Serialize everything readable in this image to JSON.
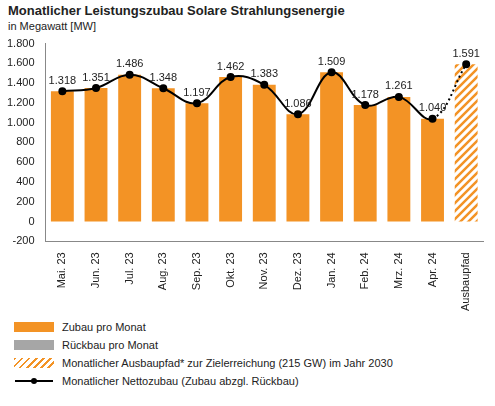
{
  "chart_data": {
    "type": "bar",
    "title": "Monatlicher Leistungszubau Solare Strahlungsenergie",
    "subtitle": "in Megawatt [MW]",
    "categories": [
      "Mai. 23",
      "Jun. 23",
      "Jul. 23",
      "Aug. 23",
      "Sep. 23",
      "Okt. 23",
      "Nov. 23",
      "Dez. 23",
      "Jan. 24",
      "Feb. 24",
      "Mrz. 24",
      "Apr. 24",
      "Ausbaupfad"
    ],
    "series": [
      {
        "name": "Zubau pro Monat",
        "type": "bar",
        "color": "#f39325",
        "values": [
          1318,
          1351,
          1486,
          1348,
          1197,
          1462,
          1383,
          1086,
          1509,
          1178,
          1261,
          1040,
          null
        ],
        "value_labels": [
          "1.318",
          "1.351",
          "1.486",
          "1.348",
          "1.197",
          "1.462",
          "1.383",
          "1.086",
          "1.509",
          "1.178",
          "1.261",
          "1.040",
          null
        ]
      },
      {
        "name": "Rückbau pro Monat",
        "type": "bar",
        "color": "#a6a6a6",
        "values": [
          null,
          null,
          null,
          null,
          null,
          null,
          null,
          null,
          null,
          null,
          null,
          null,
          null
        ]
      },
      {
        "name": "Monatlicher Ausbaupfad* zur Zielerreichung (215 GW) im Jahr 2030",
        "type": "bar",
        "color": "#f39325",
        "line_style": "hatched",
        "values": [
          null,
          null,
          null,
          null,
          null,
          null,
          null,
          null,
          null,
          null,
          null,
          null,
          1591
        ],
        "value_labels": [
          null,
          null,
          null,
          null,
          null,
          null,
          null,
          null,
          null,
          null,
          null,
          null,
          "1.591"
        ]
      },
      {
        "name": "Monatlicher Nettozubau (Zubau abzgl. Rückbau)",
        "type": "line",
        "color": "#000000",
        "marker": "circle",
        "line_style": "solid",
        "values": [
          1318,
          1351,
          1486,
          1348,
          1197,
          1462,
          1383,
          1086,
          1509,
          1178,
          1261,
          1040,
          1591
        ]
      }
    ],
    "ylim": [
      -200,
      1800
    ],
    "yticks": [
      -200,
      0,
      200,
      400,
      600,
      800,
      {
        "value": 1000,
        "label": "1.000"
      },
      {
        "value": 1200,
        "label": "1.200"
      },
      {
        "value": 1400,
        "label": "1.400"
      },
      {
        "value": 1600,
        "label": "1.600"
      },
      {
        "value": 1800,
        "label": "1.800"
      }
    ],
    "grid": false,
    "legend": "bottom",
    "data_labels": true
  }
}
